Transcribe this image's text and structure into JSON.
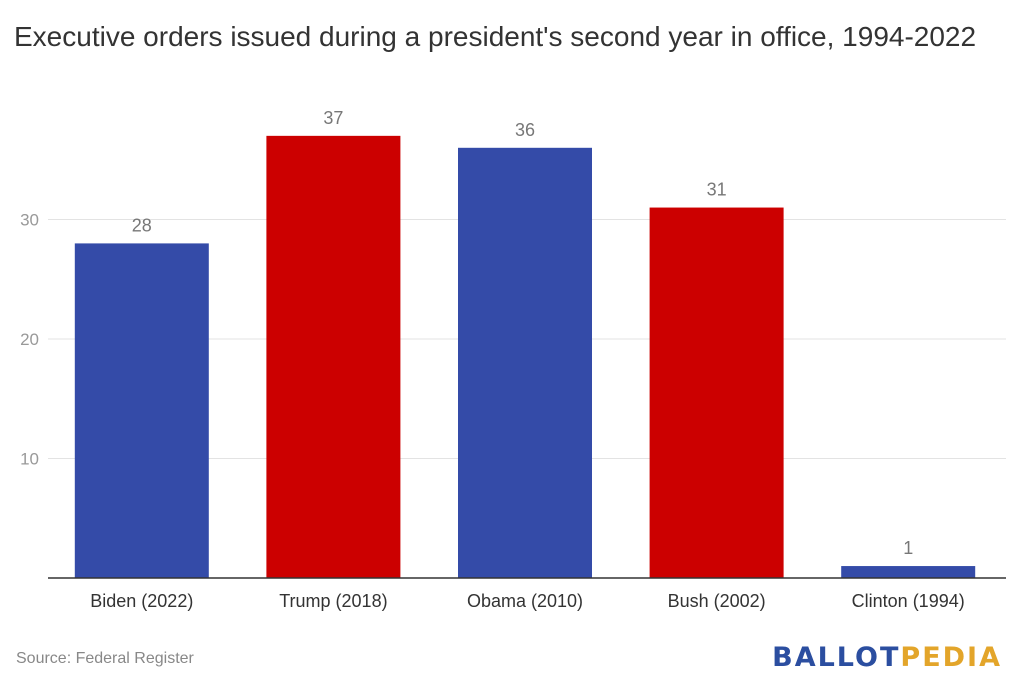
{
  "chart_data": {
    "type": "bar",
    "title": "Executive orders issued during a president's second year in office, 1994-2022",
    "categories": [
      "Biden (2022)",
      "Trump (2018)",
      "Obama (2010)",
      "Bush (2002)",
      "Clinton (1994)"
    ],
    "values": [
      28,
      37,
      36,
      31,
      1
    ],
    "bar_colors": [
      "#344ba8",
      "#cc0000",
      "#344ba8",
      "#cc0000",
      "#344ba8"
    ],
    "yticks": [
      10,
      20,
      30
    ],
    "ylim": [
      0,
      40
    ],
    "grid": true,
    "xlabel": "",
    "ylabel": ""
  },
  "footer": {
    "source": "Source: Federal Register",
    "logo_part1": "BALLOT",
    "logo_part2": "PEDIA"
  },
  "colors": {
    "democrat_blue": "#344ba8",
    "republican_red": "#cc0000",
    "logo_blue": "#2b4ea0",
    "logo_gold": "#e3a52a"
  }
}
